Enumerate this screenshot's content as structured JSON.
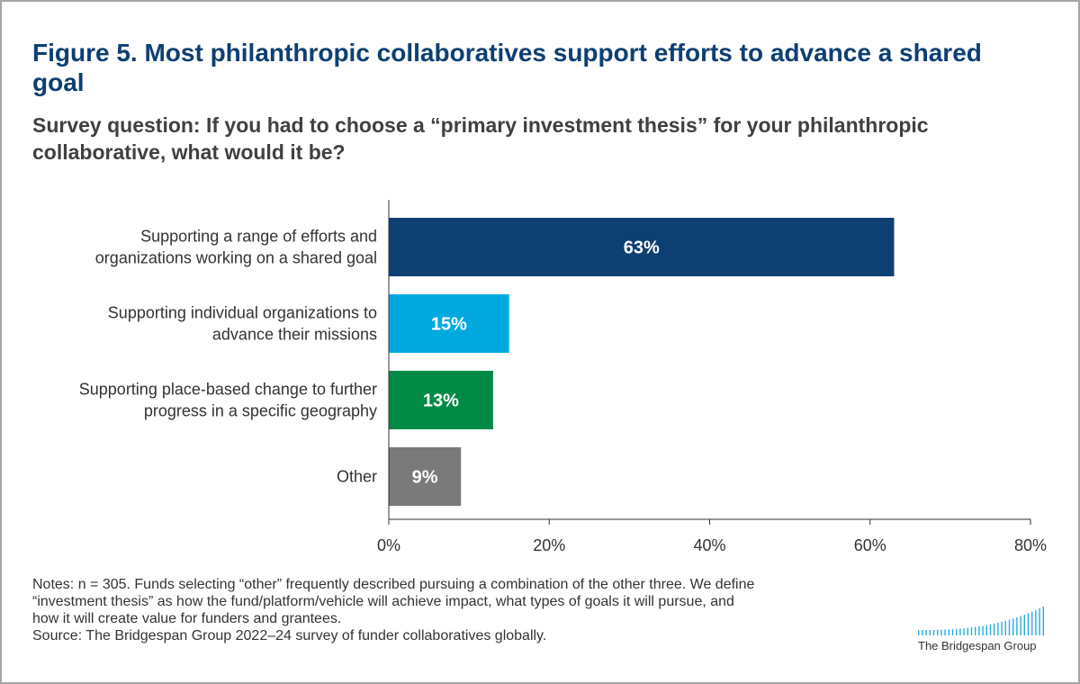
{
  "figure": {
    "title": "Figure 5. Most philanthropic collaboratives support efforts to advance a shared goal",
    "subtitle": "Survey question: If you had to choose a “primary investment thesis” for your philanthropic collaborative, what would it be?"
  },
  "notes": {
    "line1": "Notes: n = 305. Funds selecting “other” frequently described pursuing a combination of the other three. We define",
    "line2": "“investment thesis” as how the fund/platform/vehicle will achieve impact, what types of goals it will pursue, and",
    "line3": "how it will create value for funders and grantees.",
    "source": "Source: The Bridgespan Group 2022–24 survey of funder collaboratives globally."
  },
  "logo": {
    "name": "The Bridgespan Group",
    "color": "#29a9e0"
  },
  "chart_data": {
    "type": "bar",
    "orientation": "horizontal",
    "categories": [
      [
        "Supporting a range of efforts and",
        "organizations working on a shared goal"
      ],
      [
        "Supporting individual organizations to",
        "advance their missions"
      ],
      [
        "Supporting place-based change to further",
        "progress in a specific geography"
      ],
      [
        "Other"
      ]
    ],
    "values": [
      63,
      15,
      13,
      9
    ],
    "data_labels": [
      "63%",
      "15%",
      "13%",
      "9%"
    ],
    "colors": [
      "#0e3f73",
      "#00a9e0",
      "#008a45",
      "#7a7a7a"
    ],
    "xlim": [
      0,
      80
    ],
    "xticks": [
      0,
      20,
      40,
      60,
      80
    ],
    "xtick_labels": [
      "0%",
      "20%",
      "40%",
      "60%",
      "80%"
    ],
    "grid": false,
    "legend": "none"
  }
}
